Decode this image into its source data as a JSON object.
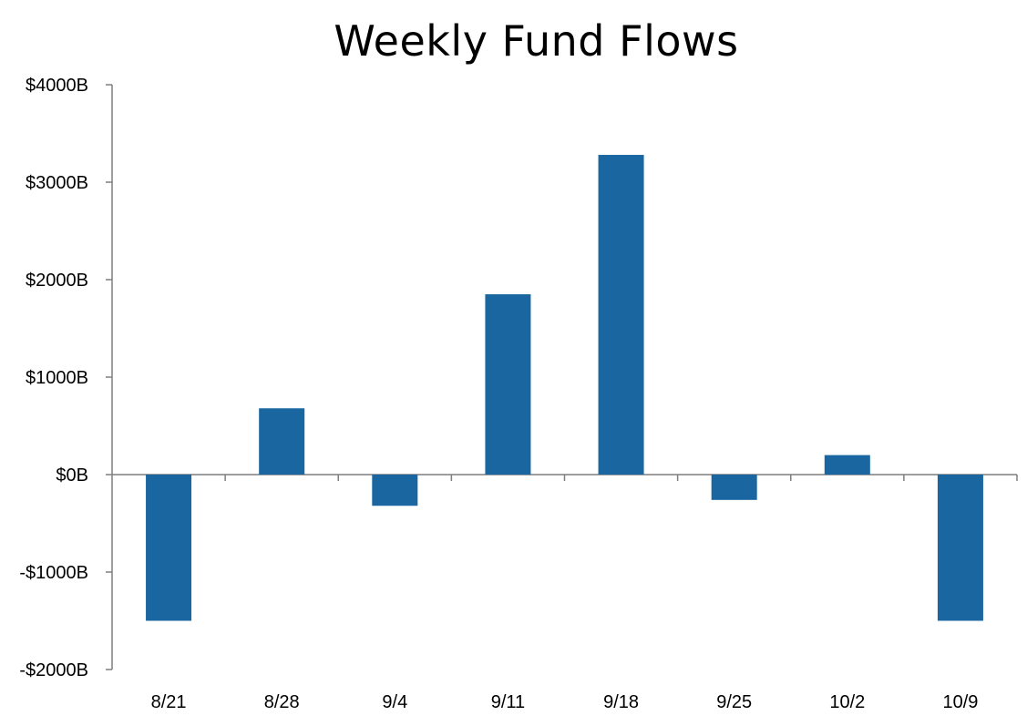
{
  "chart_data": {
    "type": "bar",
    "title": "Weekly Fund Flows",
    "xlabel": "",
    "ylabel": "",
    "categories": [
      "8/21",
      "8/28",
      "9/4",
      "9/11",
      "9/18",
      "9/25",
      "10/2",
      "10/9"
    ],
    "values": [
      -1500,
      680,
      -320,
      1850,
      3280,
      -260,
      200,
      -1500
    ],
    "ylim": [
      -2000,
      4000
    ],
    "yticks": [
      4000,
      3000,
      2000,
      1000,
      0,
      -1000,
      -2000
    ],
    "ytick_labels": [
      "$4000B",
      "$3000B",
      "$2000B",
      "$1000B",
      "$0B",
      "-$1000B",
      "-$2000B"
    ],
    "grid": false,
    "legend": "none",
    "colors": {
      "bar": "#1a66a0",
      "axis": "#7f7f7f"
    }
  }
}
